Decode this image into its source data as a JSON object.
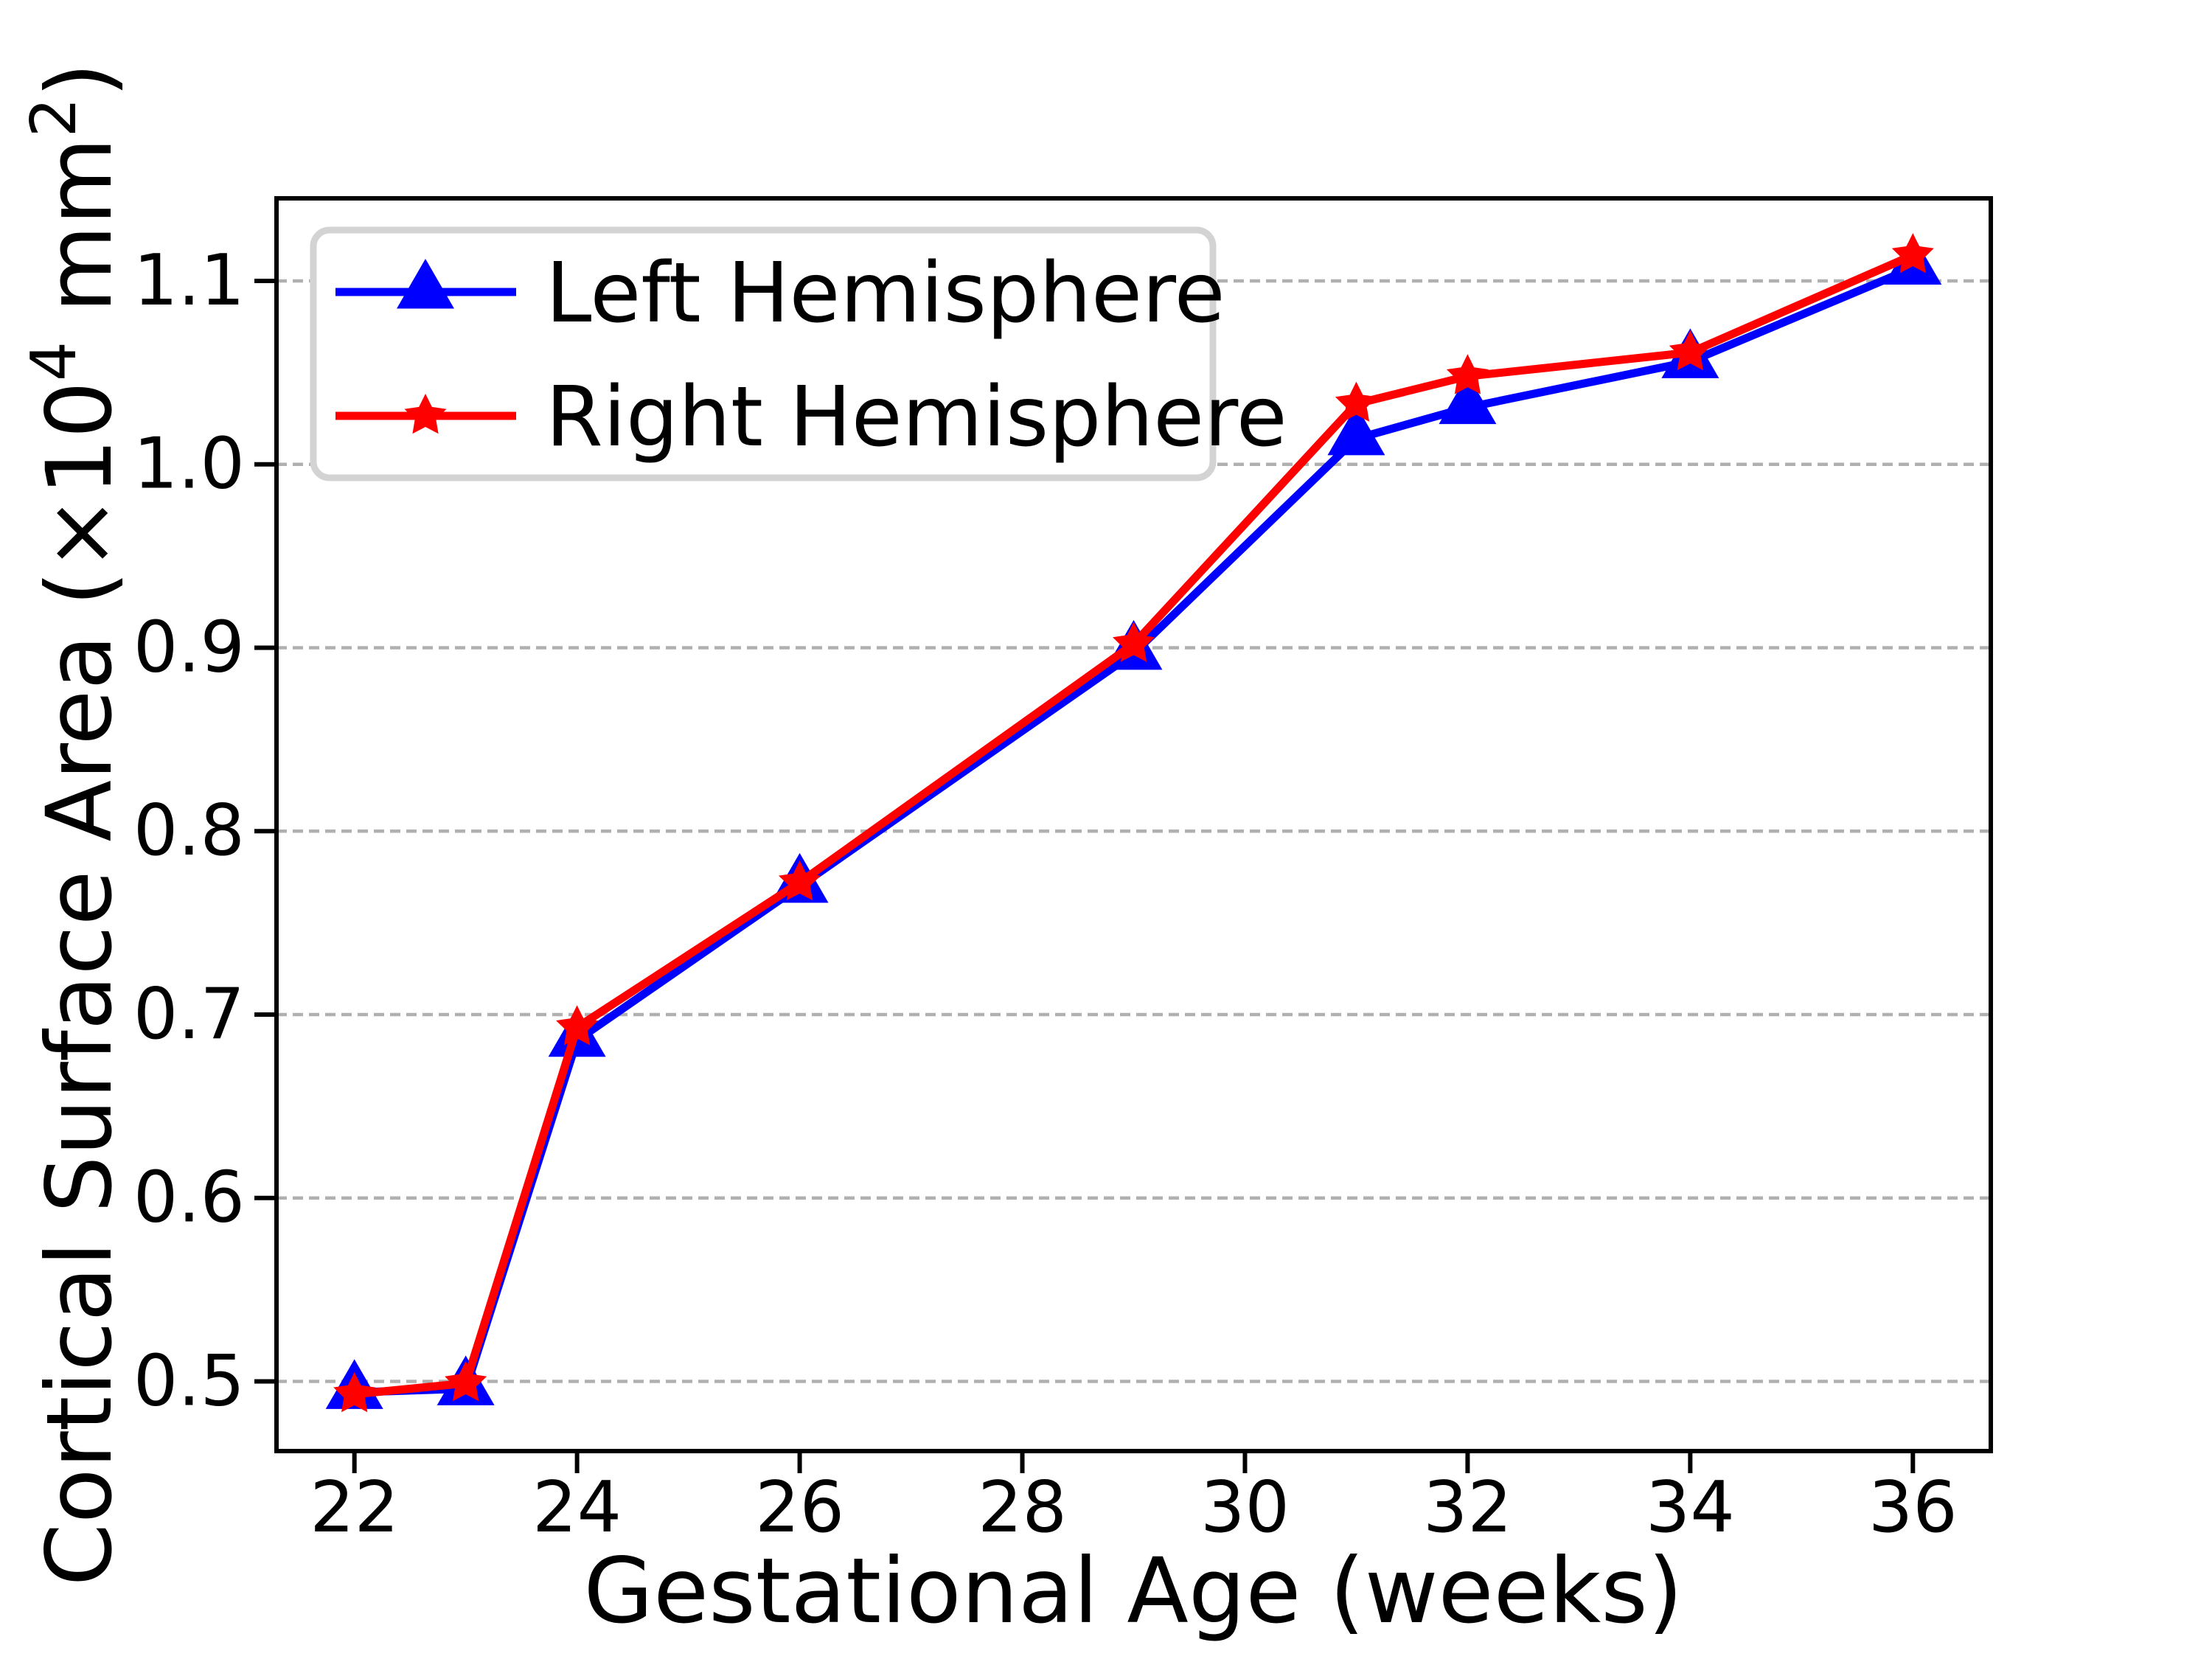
{
  "chart_data": {
    "type": "line",
    "title": "",
    "xlabel": "Gestational Age (weeks)",
    "ylabel": "Cortical Surface Area (×10⁴ mm²)",
    "ylabel_parts": [
      {
        "text": "Cortical Surface Area (×10",
        "super": false
      },
      {
        "text": "4",
        "super": true
      },
      {
        "text": " mm",
        "super": false
      },
      {
        "text": "2",
        "super": true
      },
      {
        "text": ")",
        "super": false
      }
    ],
    "x": [
      22,
      23,
      24,
      26,
      29,
      31,
      32,
      34,
      36
    ],
    "series": [
      {
        "name": "Left Hemisphere",
        "color": "#0000ff",
        "marker": "triangle-up",
        "values": [
          0.494,
          0.496,
          0.686,
          0.77,
          0.897,
          1.014,
          1.031,
          1.056,
          1.107
        ]
      },
      {
        "name": "Right Hemisphere",
        "color": "#ff0000",
        "marker": "star",
        "values": [
          0.493,
          0.499,
          0.693,
          0.772,
          0.902,
          1.033,
          1.048,
          1.061,
          1.114
        ]
      }
    ],
    "x_ticks": [
      22,
      24,
      26,
      28,
      30,
      32,
      34,
      36
    ],
    "y_ticks": [
      0.5,
      0.6,
      0.7,
      0.8,
      0.9,
      1.0,
      1.1
    ],
    "y_tick_labels": [
      "0.5",
      "0.6",
      "0.7",
      "0.8",
      "0.9",
      "1.0",
      "1.1"
    ],
    "xlim": [
      21.3,
      36.7
    ],
    "ylim": [
      0.462,
      1.145
    ],
    "grid": {
      "visible": true,
      "axis": "y",
      "style": "dashed",
      "color": "#b0b0b0"
    },
    "legend": {
      "position": "upper left",
      "labels": [
        "Left Hemisphere",
        "Right Hemisphere"
      ]
    },
    "spine_color": "#000000"
  }
}
